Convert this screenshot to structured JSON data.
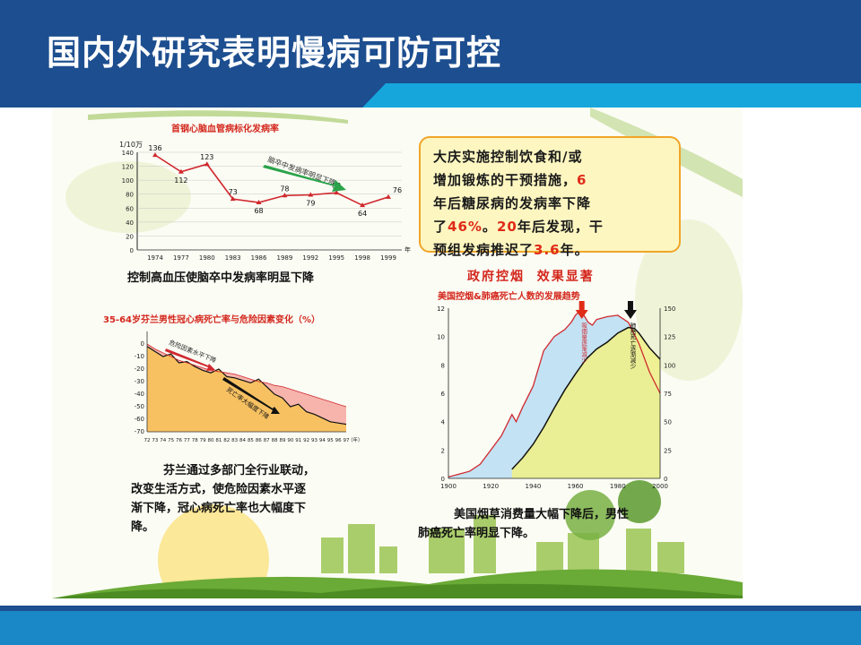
{
  "header": {
    "title": "国内外研究表明慢病可防可控"
  },
  "poster": {
    "stroke_chart": {
      "title": "首钢心脑血管病标化发病率",
      "unit": "1/10万",
      "year_suffix": "年",
      "annotation": "脑卒中发病率明显下降",
      "caption": "控制高血压使脑卒中发病率明显下降"
    },
    "callout": {
      "line1": "大庆实施控制饮食和/或",
      "line2_a": "增加锻炼的干预措施，",
      "line2_b": "6",
      "line3": "年后糖尿病的发病率下降",
      "line4_a": "了",
      "line4_b": "46%",
      "line4_c": "。",
      "line4_d": "20",
      "line4_e": "年后发现，干",
      "line5_a": "预组发病推迟了",
      "line5_b": "3.6",
      "line5_c": "年。"
    },
    "finland_chart": {
      "title": "35-64岁芬兰男性冠心病死亡率与危险因素变化（%）",
      "risk_label": "危险因素水平下降",
      "death_label": "死亡率大幅度下降",
      "year_suffix": "（年）",
      "caption_lines": [
        "芬兰通过多部门全行业联动，",
        "改变生活方式，使危险因素水平逐",
        "渐下降，冠心病死亡率也大幅度下",
        "降。"
      ]
    },
    "us_chart": {
      "headline": "政府控烟  效果显著",
      "title": "美国控烟&肺癌死亡人数的发展趋势",
      "left_annotation": "吸烟量逐渐减少",
      "right_annotation": "肺癌死亡逐渐减少",
      "caption_lines": [
        "美国烟草消费量大幅下降后，男性",
        "肺癌死亡率明显下降。"
      ]
    }
  },
  "chart_data": [
    {
      "type": "line",
      "title": "首钢心脑血管病标化发病率",
      "ylabel": "1/10万",
      "x": [
        "1974",
        "1977",
        "1980",
        "1983",
        "1986",
        "1989",
        "1992",
        "1995",
        "1998",
        "1999"
      ],
      "values": [
        136,
        112,
        123,
        73,
        68,
        78,
        79,
        82,
        64,
        76
      ],
      "ylim": [
        0,
        140
      ],
      "yticks": [
        0,
        20,
        40,
        60,
        80,
        100,
        120,
        140
      ],
      "color": "#d0282e"
    },
    {
      "type": "area",
      "title": "35-64岁芬兰男性冠心病死亡率与危险因素变化（%）",
      "x": [
        "72",
        "73",
        "74",
        "75",
        "76",
        "77",
        "78",
        "79",
        "80",
        "81",
        "82",
        "83",
        "84",
        "85",
        "86",
        "87",
        "88",
        "89",
        "90",
        "91",
        "92",
        "93",
        "94",
        "95",
        "96",
        "97"
      ],
      "ylim": [
        -70,
        10
      ],
      "yticks": [
        0,
        -10,
        -20,
        -30,
        -40,
        -50,
        -60,
        -70
      ],
      "series": [
        {
          "name": "危险因素水平下降",
          "values": [
            0,
            -4,
            -7,
            -10,
            -13,
            -15,
            -17,
            -19,
            -21,
            -22,
            -23,
            -24,
            -26,
            -28,
            -30,
            -31,
            -33,
            -34,
            -36,
            -38,
            -40,
            -42,
            -44,
            -46,
            -48,
            -50
          ]
        },
        {
          "name": "死亡率大幅度下降",
          "values": [
            -2,
            -6,
            -10,
            -8,
            -15,
            -14,
            -18,
            -21,
            -23,
            -20,
            -26,
            -27,
            -29,
            -31,
            -28,
            -34,
            -40,
            -43,
            -50,
            -48,
            -54,
            -56,
            -59,
            -62,
            -63,
            -64
          ]
        }
      ]
    },
    {
      "type": "line",
      "title": "美国控烟&肺癌死亡人数的发展趋势",
      "xlim": [
        1900,
        2000
      ],
      "xticks": [
        1900,
        1920,
        1940,
        1960,
        1980,
        2000
      ],
      "ylim_left": [
        0,
        12
      ],
      "ylim_right": [
        0,
        150
      ],
      "series": [
        {
          "name": "吸烟量逐渐减少",
          "axis": "left",
          "x": [
            1900,
            1905,
            1910,
            1915,
            1920,
            1925,
            1930,
            1932,
            1935,
            1940,
            1945,
            1950,
            1955,
            1958,
            1960,
            1962,
            1964,
            1966,
            1968,
            1970,
            1975,
            1980,
            1985,
            1990,
            1995,
            2000
          ],
          "values": [
            0.1,
            0.3,
            0.5,
            1.0,
            2.0,
            3.0,
            4.5,
            4.0,
            5.0,
            6.5,
            9.0,
            10.0,
            10.5,
            11.0,
            11.5,
            11.8,
            11.5,
            11.0,
            10.8,
            11.2,
            11.4,
            11.5,
            11.0,
            9.5,
            7.5,
            6.0
          ]
        },
        {
          "name": "肺癌死亡逐渐减少",
          "axis": "right",
          "x": [
            1930,
            1935,
            1940,
            1945,
            1950,
            1955,
            1960,
            1965,
            1970,
            1975,
            1980,
            1985,
            1988,
            1990,
            1995,
            2000
          ],
          "values": [
            8,
            18,
            30,
            45,
            62,
            78,
            92,
            105,
            114,
            120,
            128,
            133,
            132,
            128,
            115,
            105
          ]
        }
      ]
    }
  ]
}
